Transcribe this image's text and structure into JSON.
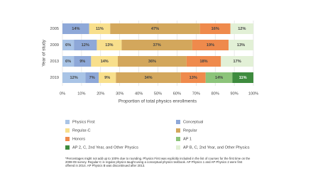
{
  "chart_data": {
    "type": "stacked-bar-horizontal",
    "y_label": "Year of study",
    "x_label": "Proportion of total physics enrollments",
    "categories": [
      "2005",
      "2009",
      "2013",
      "2019"
    ],
    "xlim": [
      0,
      100
    ],
    "xticks": [
      {
        "value": 0,
        "label": "0%"
      },
      {
        "value": 10,
        "label": "10%"
      },
      {
        "value": 20,
        "label": "20%"
      },
      {
        "value": 30,
        "label": "30%"
      },
      {
        "value": 40,
        "label": "40%"
      },
      {
        "value": 50,
        "label": "50%"
      },
      {
        "value": 60,
        "label": "60%"
      },
      {
        "value": 70,
        "label": "70%"
      },
      {
        "value": 80,
        "label": "80%"
      },
      {
        "value": 90,
        "label": "90%"
      },
      {
        "value": 100,
        "label": "100%"
      }
    ],
    "grid": true,
    "series": [
      {
        "name": "Physics First",
        "color": "#a9c4e6",
        "values": [
          null,
          6,
          6,
          12
        ],
        "value_labels": [
          null,
          "6%",
          "6%",
          "12%"
        ]
      },
      {
        "name": "Conceptual",
        "color": "#8ea8d8",
        "values": [
          14,
          12,
          9,
          7
        ],
        "value_labels": [
          "14%",
          "12%",
          "9%",
          "7%"
        ]
      },
      {
        "name": "Regular-C",
        "color": "#f8df8c",
        "values": [
          11,
          13,
          14,
          9
        ],
        "value_labels": [
          "11%",
          "13%",
          "14%",
          "9%"
        ]
      },
      {
        "name": "Regular",
        "color": "#d3a75c",
        "values": [
          47,
          37,
          36,
          34
        ],
        "value_labels": [
          "47%",
          "37%",
          "36%",
          "34%"
        ]
      },
      {
        "name": "Honors",
        "color": "#ef8a4c",
        "values": [
          16,
          19,
          18,
          13
        ],
        "value_labels": [
          "16%",
          "19%",
          "18%",
          "13%"
        ]
      },
      {
        "name": "AP 1",
        "color": "#8cc47a",
        "values": [
          null,
          null,
          null,
          14
        ],
        "value_labels": [
          null,
          null,
          null,
          "14%"
        ]
      },
      {
        "name": "AP 2, C, 2nd Year, and Other Physics",
        "color": "#3e8b3e",
        "values": [
          null,
          null,
          null,
          11
        ],
        "value_labels": [
          null,
          null,
          null,
          "11%"
        ]
      },
      {
        "name": "AP B, C, 2nd Year, and Other Physics",
        "color": "#e2f0d6",
        "values": [
          12,
          13,
          17,
          null
        ],
        "value_labels": [
          "12%",
          "13%",
          "17%",
          null
        ]
      }
    ]
  },
  "footnote": "*Percentages might not add up to 100% due to rounding. Physics First was explicitly included in the list of courses for the first time on the 2008-09 survey. Regular-C is regular physics taught using a conceptual physics textbook. AP Physics 1 and AP Physics 2 were first offered in 2014. AP Physics B was discontinued after 2013."
}
